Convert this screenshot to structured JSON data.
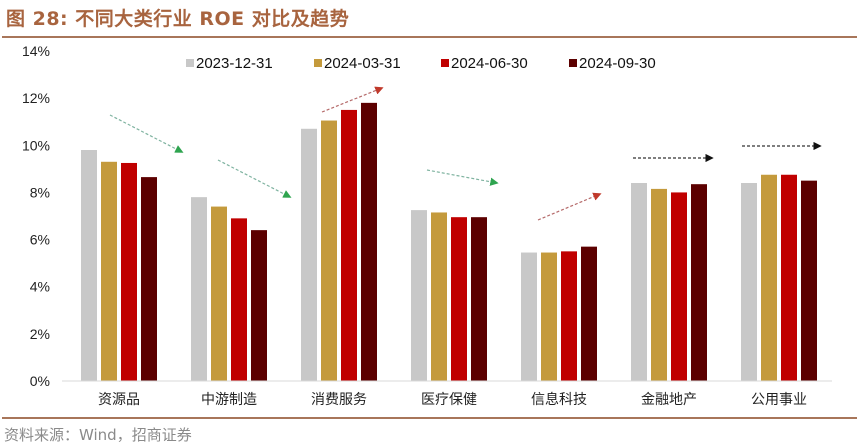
{
  "header": {
    "title": "图 28:  不同大类行业 ROE 对比及趋势"
  },
  "footer": {
    "source": "资料来源：Wind，招商证券"
  },
  "colors": {
    "series": [
      "#c8c8c8",
      "#c49a3c",
      "#c00000",
      "#5c0000"
    ],
    "title": "#a8643f",
    "rule": "#a8765a",
    "arrow_down": "#2ea44f",
    "arrow_up": "#c0392b",
    "arrow_flat": "#111111"
  },
  "chart_data": {
    "type": "bar",
    "title": "不同大类行业 ROE 对比及趋势",
    "xlabel": "",
    "ylabel": "",
    "ylim": [
      0,
      14
    ],
    "yticks": [
      "0%",
      "2%",
      "4%",
      "6%",
      "8%",
      "10%",
      "12%",
      "14%"
    ],
    "grid": false,
    "legend_position": "top",
    "categories": [
      "资源品",
      "中游制造",
      "消费服务",
      "医疗保健",
      "信息科技",
      "金融地产",
      "公用事业"
    ],
    "series": [
      {
        "name": "2023-12-31",
        "values": [
          9.8,
          7.8,
          10.7,
          7.25,
          5.45,
          8.4,
          8.4
        ]
      },
      {
        "name": "2024-03-31",
        "values": [
          9.3,
          7.4,
          11.05,
          7.15,
          5.45,
          8.15,
          8.75
        ]
      },
      {
        "name": "2024-06-30",
        "values": [
          9.25,
          6.9,
          11.5,
          6.95,
          5.5,
          8.0,
          8.75
        ]
      },
      {
        "name": "2024-09-30",
        "values": [
          8.65,
          6.4,
          11.8,
          6.95,
          5.7,
          8.35,
          8.5
        ]
      }
    ],
    "annotations": [
      {
        "category": "资源品",
        "trend": "down"
      },
      {
        "category": "中游制造",
        "trend": "down"
      },
      {
        "category": "消费服务",
        "trend": "up"
      },
      {
        "category": "医疗保健",
        "trend": "down"
      },
      {
        "category": "信息科技",
        "trend": "up"
      },
      {
        "category": "金融地产",
        "trend": "flat"
      },
      {
        "category": "公用事业",
        "trend": "flat"
      }
    ]
  }
}
